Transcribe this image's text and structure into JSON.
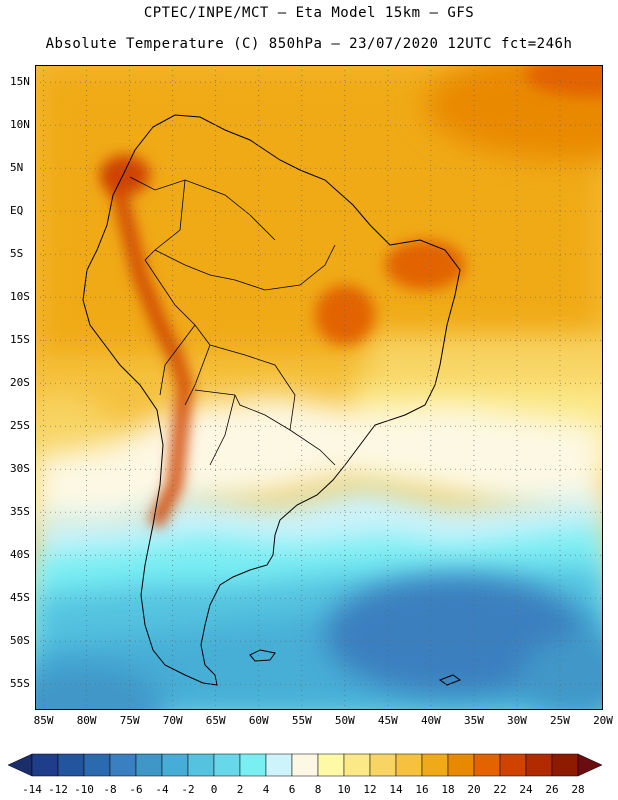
{
  "header": {
    "line1": "CPTEC/INPE/MCT –  Eta Model 15km – GFS",
    "line2": "Absolute Temperature (C) 850hPa – 23/07/2020 12UTC fct=246h"
  },
  "map": {
    "lat_labels": [
      "15N",
      "10N",
      "5N",
      "EQ",
      "5S",
      "10S",
      "15S",
      "20S",
      "25S",
      "30S",
      "35S",
      "40S",
      "45S",
      "50S",
      "55S"
    ],
    "lon_labels": [
      "85W",
      "80W",
      "75W",
      "70W",
      "65W",
      "60W",
      "55W",
      "50W",
      "45W",
      "40W",
      "35W",
      "30W",
      "25W",
      "20W"
    ],
    "lat_range": [
      17,
      -58
    ],
    "lon_range": [
      -86,
      -20
    ]
  },
  "colorbar": {
    "labels": [
      "-14",
      "-12",
      "-10",
      "-8",
      "-6",
      "-4",
      "-2",
      "0",
      "2",
      "4",
      "6",
      "8",
      "10",
      "12",
      "14",
      "16",
      "18",
      "20",
      "22",
      "24",
      "26",
      "28"
    ],
    "colors": [
      "#1f3e8a",
      "#23549e",
      "#2c6ab0",
      "#3a7fbf",
      "#3f97c8",
      "#46aed6",
      "#55c3e0",
      "#66d8ea",
      "#79eef3",
      "#cdf3fb",
      "#fdf8e3",
      "#fef9a6",
      "#fbe886",
      "#f8d464",
      "#f5c13e",
      "#f0aa17",
      "#e98900",
      "#e26300",
      "#cf4200",
      "#b22a00",
      "#8e1a00"
    ],
    "under_color": "#1a2e6c",
    "over_color": "#6b0d10"
  }
}
